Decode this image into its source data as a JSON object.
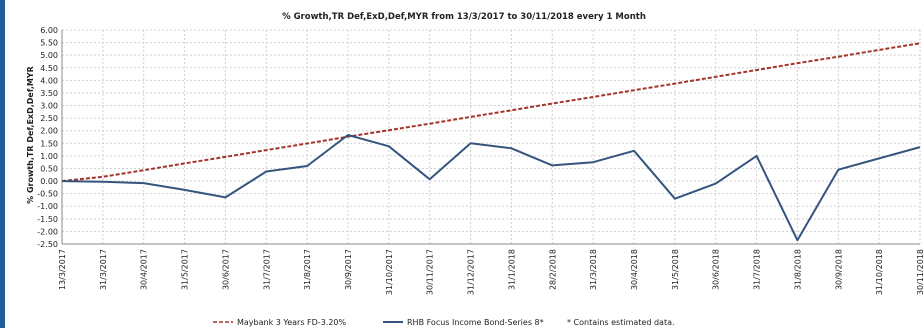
{
  "chart_data": {
    "type": "line",
    "title": "% Growth,TR Def,ExD,Def,MYR from 13/3/2017 to 30/11/2018 every 1 Month",
    "xlabel": "",
    "ylabel": "% Growth,TR Def,ExD,Def,MYR",
    "ylim": [
      -2.5,
      6.0
    ],
    "ytick_step": 0.5,
    "grid": true,
    "legend_position": "bottom",
    "colors": {
      "series_1": "#a3342b",
      "series_2": "#35557f",
      "grid": "#d0d0d0",
      "frame": "#1f5c99"
    },
    "categories": [
      "13/3/2017",
      "31/3/2017",
      "30/4/2017",
      "31/5/2017",
      "30/6/2017",
      "31/7/2017",
      "31/8/2017",
      "30/9/2017",
      "31/10/2017",
      "30/11/2017",
      "31/12/2017",
      "31/1/2018",
      "28/2/2018",
      "31/3/2018",
      "30/4/2018",
      "31/5/2018",
      "30/6/2018",
      "31/7/2018",
      "31/8/2018",
      "30/9/2018",
      "31/10/2018",
      "30/11/2018"
    ],
    "series": [
      {
        "name": "Maybank 3 Years FD-3.20%",
        "style": "dashed",
        "values": [
          0.0,
          0.17,
          0.43,
          0.7,
          0.96,
          1.23,
          1.49,
          1.76,
          2.02,
          2.28,
          2.55,
          2.81,
          3.08,
          3.34,
          3.61,
          3.87,
          4.14,
          4.41,
          4.68,
          4.94,
          5.21,
          5.47
        ]
      },
      {
        "name": "RHB Focus Income Bond-Series 8*",
        "style": "solid",
        "values": [
          0.0,
          -0.03,
          -0.08,
          -0.35,
          -0.65,
          0.38,
          0.6,
          1.83,
          1.38,
          0.07,
          1.5,
          1.3,
          0.62,
          0.75,
          1.2,
          -0.7,
          -0.1,
          1.0,
          -2.35,
          0.45,
          0.9,
          1.35
        ]
      }
    ],
    "legend_note": "* Contains estimated data."
  }
}
